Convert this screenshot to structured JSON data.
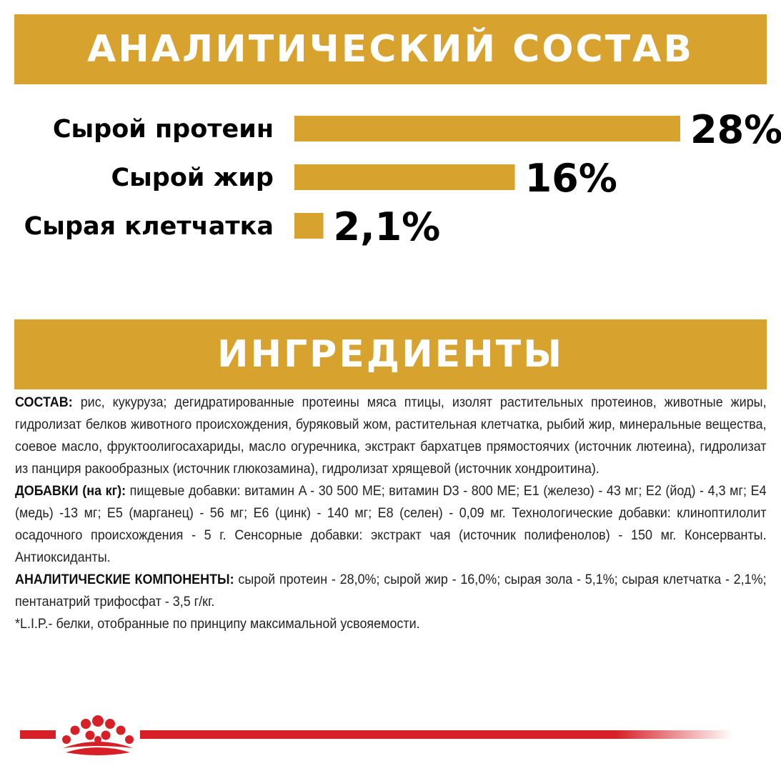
{
  "analysis_banner": {
    "title": "АНАЛИТИЧЕСКИЙ СОСТАВ"
  },
  "ingredients_banner": {
    "title": "ИНГРЕДИЕНТЫ"
  },
  "colors": {
    "gold": "#d7a32e",
    "red": "#d61f26",
    "text": "#000000"
  },
  "chart_data": {
    "type": "bar",
    "orientation": "horizontal",
    "categories": [
      "Сырой протеин",
      "Сырой жир",
      "Сырая клетчатка"
    ],
    "values": [
      28,
      16,
      2.1
    ],
    "value_labels": [
      "28%",
      "16%",
      "2,1%"
    ],
    "unit": "%",
    "xlim": [
      0,
      28
    ],
    "grid": false,
    "legend": "none"
  },
  "ingredients": {
    "composition_label": "СОСТАВ:",
    "composition_text": " рис, кукуруза; дегидратированные протеины мяса птицы, изолят растительных протеинов, животные жиры, гидролизат белков животного происхождения, буряковый жом, растительная клетчатка, рыбий жир, минеральные вещества, соевое масло, фруктоолигосахариды, масло огуречника, экстракт бархатцев прямостоячих (источник лютеина), гидролизат из панциря ракообразных (источник глюкозамина), гидролизат хрящевой (источник хондроитина).",
    "additives_label": "ДОБАВКИ (на кг):",
    "additives_text": " пищевые добавки: витамин A - 30 500 МЕ; витамин D3 - 800 МЕ; E1 (железо) - 43 мг; E2 (йод) - 4,3 мг; E4 (медь) -13 мг; E5 (марганец) - 56 мг; E6 (цинк) - 140 мг; E8 (селен) - 0,09 мг. Технологические добавки: клиноптилолит осадочного происхождения - 5 г. Сенсорные добавки: экстракт чая (источник полифенолов) - 150 мг. Консерванты. Антиоксиданты.",
    "analytical_label": "АНАЛИТИЧЕСКИЕ КОМПОНЕНТЫ:",
    "analytical_text": " сырой протеин - 28,0%; сырой жир - 16,0%; сырая зола - 5,1%; сырая клетчатка - 2,1%; пентанатрий трифосфат - 3,5 г/кг.",
    "footnote": "*L.I.P.- белки, отобранные по принципу максимальной усвояемости."
  },
  "footer": {
    "logo_icon": "royal-canin-crown-icon"
  }
}
